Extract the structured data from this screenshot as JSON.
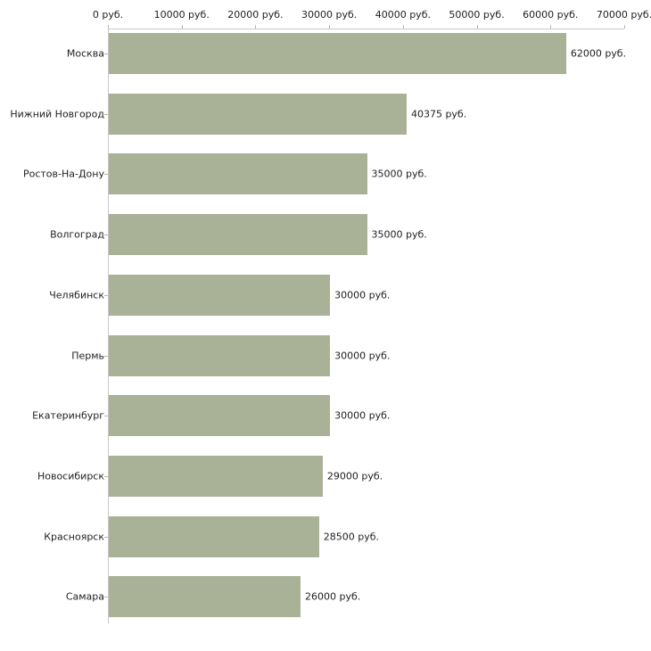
{
  "chart_data": {
    "type": "bar",
    "orientation": "horizontal",
    "title": "",
    "xlabel": "",
    "ylabel": "",
    "grid": false,
    "legend": false,
    "xlim": [
      0,
      70000
    ],
    "x_ticks": [
      0,
      10000,
      20000,
      30000,
      40000,
      50000,
      60000,
      70000
    ],
    "x_tick_labels": [
      "0 руб.",
      "10000 руб.",
      "20000 руб.",
      "30000 руб.",
      "40000 руб.",
      "50000 руб.",
      "60000 руб.",
      "70000 руб."
    ],
    "categories": [
      "Москва",
      "Нижний Новгород",
      "Ростов-На-Дону",
      "Волгоград",
      "Челябинск",
      "Пермь",
      "Екатеринбург",
      "Новосибирск",
      "Красноярск",
      "Самара"
    ],
    "values": [
      62000,
      40375,
      35000,
      35000,
      30000,
      30000,
      30000,
      29000,
      28500,
      26000
    ],
    "value_labels": [
      "62000 руб.",
      "40375 руб.",
      "35000 руб.",
      "35000 руб.",
      "30000 руб.",
      "30000 руб.",
      "30000 руб.",
      "29000 руб.",
      "28500 руб.",
      "26000 руб."
    ],
    "colors": {
      "bar": "#a9b197",
      "axis_line": "#c9c9c9",
      "tick_mark": "#b9bc8f",
      "text": "#1f1f1f",
      "background": "#ffffff"
    }
  }
}
